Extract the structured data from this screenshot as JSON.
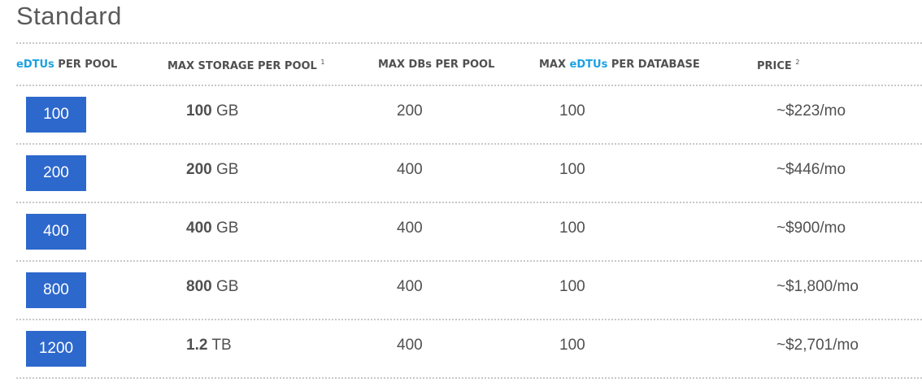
{
  "title": "Standard",
  "headers": {
    "edtus_pool": {
      "highlight": "eDTUs",
      "rest": " PER POOL"
    },
    "storage": {
      "text": "MAX STORAGE PER POOL",
      "sup": "1"
    },
    "dbs": {
      "text": "MAX DBs PER POOL"
    },
    "edtus_db": {
      "pre": "MAX ",
      "highlight": "eDTUs",
      "rest": " PER DATABASE"
    },
    "price": {
      "text": "PRICE",
      "sup": "2"
    }
  },
  "colors": {
    "accent": "#1ba1e2",
    "badge": "#2d68cc"
  },
  "rows": [
    {
      "edtus": "100",
      "storage_num": "100",
      "storage_unit": " GB",
      "dbs": "200",
      "edtus_db": "100",
      "price": "~$223/mo"
    },
    {
      "edtus": "200",
      "storage_num": "200",
      "storage_unit": " GB",
      "dbs": "400",
      "edtus_db": "100",
      "price": "~$446/mo"
    },
    {
      "edtus": "400",
      "storage_num": "400",
      "storage_unit": " GB",
      "dbs": "400",
      "edtus_db": "100",
      "price": "~$900/mo"
    },
    {
      "edtus": "800",
      "storage_num": "800",
      "storage_unit": " GB",
      "dbs": "400",
      "edtus_db": "100",
      "price": "~$1,800/mo"
    },
    {
      "edtus": "1200",
      "storage_num": "1.2",
      "storage_unit": " TB",
      "dbs": "400",
      "edtus_db": "100",
      "price": "~$2,701/mo"
    }
  ]
}
